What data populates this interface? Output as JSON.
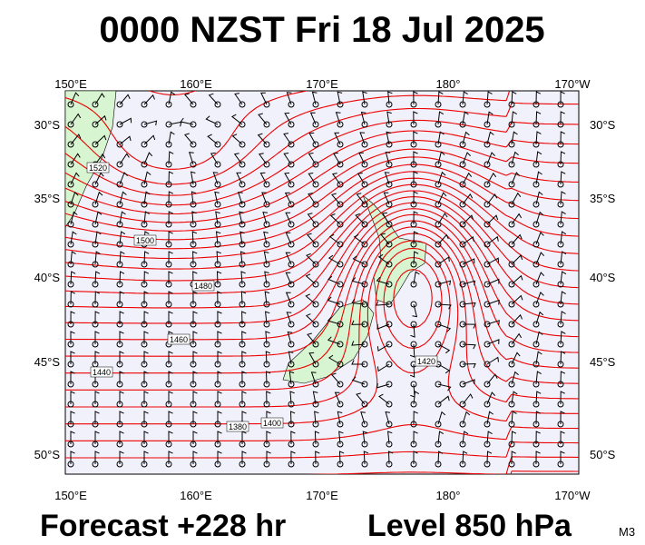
{
  "header": {
    "title": "0000 NZST Fri 18 Jul 2025"
  },
  "axes": {
    "longitudes": [
      "150°E",
      "160°E",
      "170°E",
      "180°",
      "170°W"
    ],
    "latitudes": [
      "30°S",
      "35°S",
      "40°S",
      "45°S",
      "50°S"
    ]
  },
  "contour_labels": [
    "1520",
    "1500",
    "1480",
    "1460",
    "1440",
    "1420",
    "1400",
    "1380"
  ],
  "footer": {
    "forecast": "Forecast +228 hr",
    "level": "Level 850 hPa",
    "code": "M3"
  }
}
